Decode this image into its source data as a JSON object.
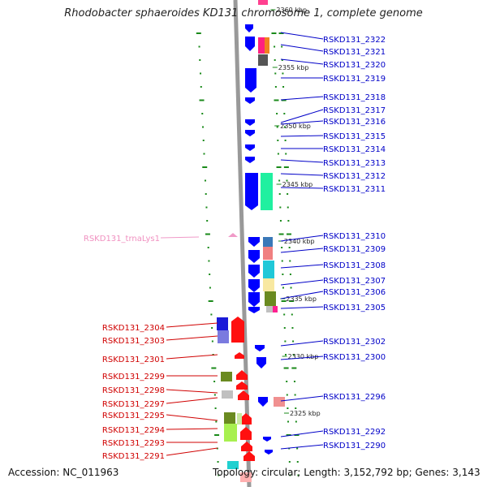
{
  "title": "Rhodobacter sphaeroides KD131 chromosome 1, complete genome",
  "accession": "Accession: NC_011963",
  "topology": "Topology: circular; Length: 3,152,792 bp; Genes: 3,143",
  "ruler": [
    "2360 kbp",
    "2355 kbp",
    "2350 kbp",
    "2345 kbp",
    "2340 kbp",
    "2335 kbp",
    "2330 kbp",
    "2325 kbp"
  ],
  "right_genes": [
    "RSKD131_2322",
    "RSKD131_2321",
    "RSKD131_2320",
    "RSKD131_2319",
    "RSKD131_2318",
    "RSKD131_2317",
    "RSKD131_2316",
    "RSKD131_2315",
    "RSKD131_2314",
    "RSKD131_2313",
    "RSKD131_2312",
    "RSKD131_2311",
    "RSKD131_2310",
    "RSKD131_2309",
    "RSKD131_2308",
    "RSKD131_2307",
    "RSKD131_2306",
    "RSKD131_2305",
    "RSKD131_2302",
    "RSKD131_2300",
    "RSKD131_2296",
    "RSKD131_2292",
    "RSKD131_2290"
  ],
  "left_genes": [
    "RSKD131_2304",
    "RSKD131_2303",
    "RSKD131_2301",
    "RSKD131_2299",
    "RSKD131_2298",
    "RSKD131_2297",
    "RSKD131_2295",
    "RSKD131_2294",
    "RSKD131_2293",
    "RSKD131_2291"
  ],
  "trna_gene": "RSKD131_trnaLys1",
  "colors": {
    "right_label": "#0000c8",
    "left_label": "#d00000",
    "trna_label": "#f090c0",
    "ruler_dots": "#1a8a1a",
    "backbone": "#999999",
    "forward_strand": "#0000ff",
    "reverse_strand": "#ff1010"
  }
}
